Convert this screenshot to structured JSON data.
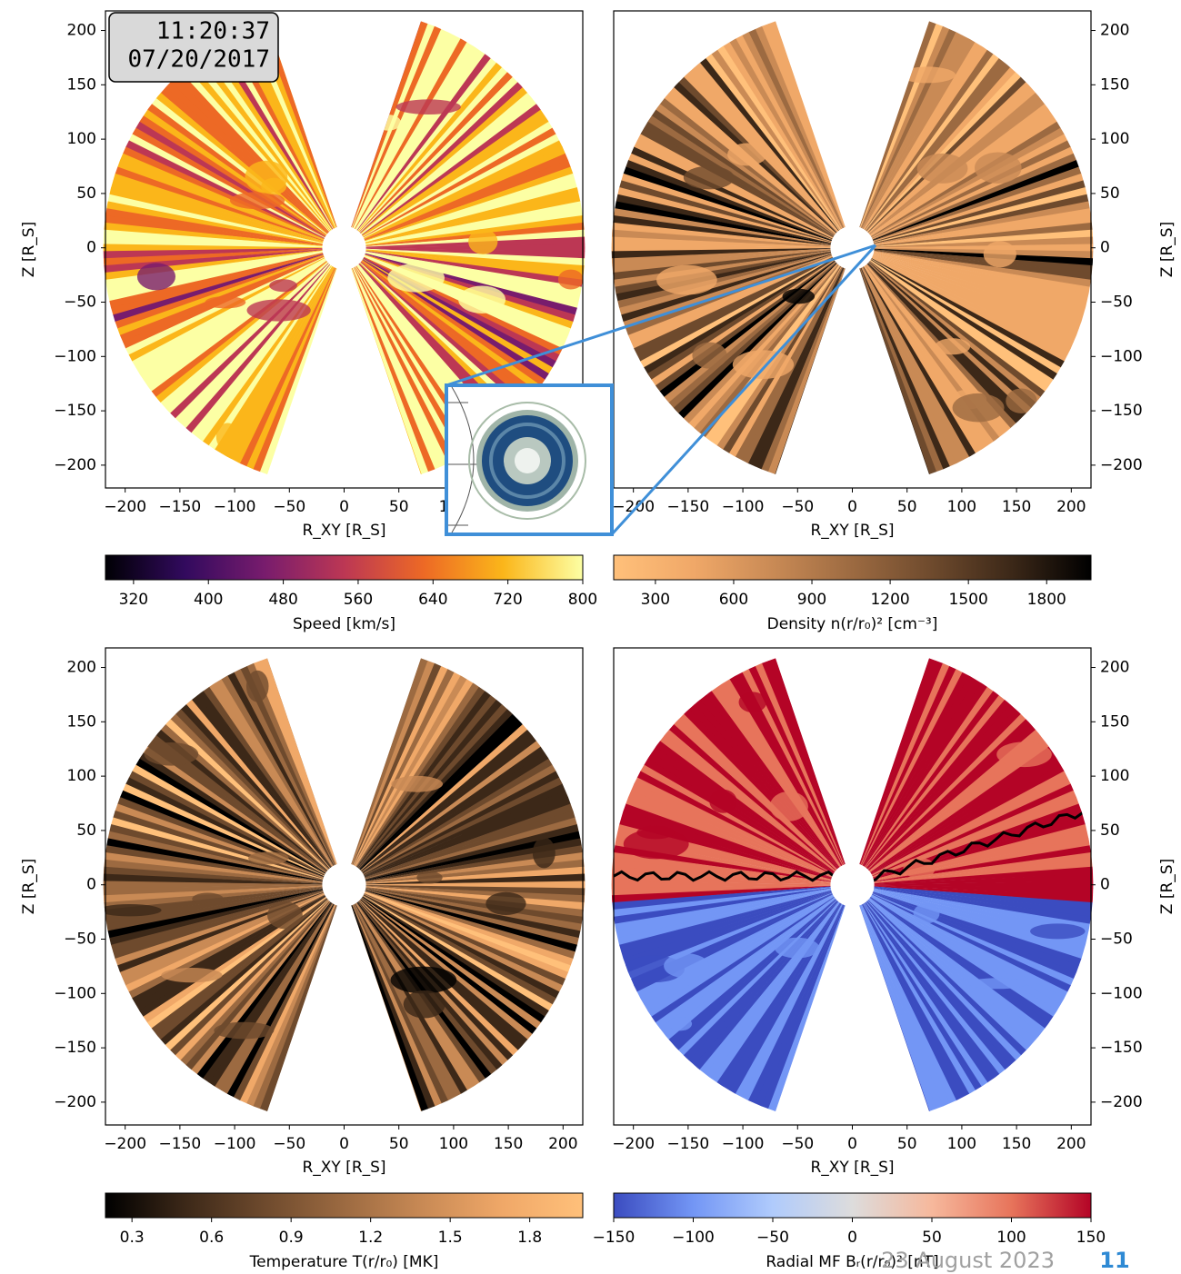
{
  "timestamp": {
    "time": "11:20:37",
    "date": "07/20/2017"
  },
  "chart_data": [
    {
      "type": "field",
      "xlabel": "R_XY [R_S]",
      "ylabel": "Z [R_S]",
      "yaxis_side": "left",
      "xlim": [
        -218,
        218
      ],
      "ylim": [
        -221,
        218
      ],
      "xticks": [
        {
          "value": -200,
          "label": "−200"
        },
        {
          "value": -150,
          "label": "−150"
        },
        {
          "value": -100,
          "label": "−100"
        },
        {
          "value": -50,
          "label": "−50"
        },
        0,
        50,
        100,
        150,
        200
      ],
      "yticks": [
        {
          "value": -200,
          "label": "−200"
        },
        {
          "value": -150,
          "label": "−150"
        },
        {
          "value": -100,
          "label": "−100"
        },
        {
          "value": -50,
          "label": "−50"
        },
        0,
        50,
        100,
        150,
        200
      ],
      "colorbar": {
        "label": "Speed [km/s]",
        "lim": [
          290,
          800
        ],
        "ticks": [
          320,
          400,
          480,
          560,
          640,
          720,
          800
        ],
        "colormap": [
          "#000004",
          "#320a5e",
          "#781c6d",
          "#bc3754",
          "#ed6925",
          "#fbb61a",
          "#fcffa4"
        ]
      }
    },
    {
      "type": "field",
      "xlabel": "R_XY [R_S]",
      "ylabel": "Z [R_S]",
      "yaxis_side": "right",
      "xlim": [
        -218,
        218
      ],
      "ylim": [
        -221,
        218
      ],
      "xticks": [
        {
          "value": -200,
          "label": "−200"
        },
        {
          "value": -150,
          "label": "−150"
        },
        {
          "value": -100,
          "label": "−100"
        },
        {
          "value": -50,
          "label": "−50"
        },
        0,
        50,
        100,
        150,
        200
      ],
      "yticks": [
        {
          "value": -200,
          "label": "−200"
        },
        {
          "value": -150,
          "label": "−150"
        },
        {
          "value": -100,
          "label": "−100"
        },
        {
          "value": -50,
          "label": "−50"
        },
        0,
        50,
        100,
        150,
        200
      ],
      "colorbar": {
        "label": "Density n(r/r₀)² [cm⁻³]",
        "lim": [
          140,
          1970
        ],
        "ticks": [
          300,
          600,
          900,
          1200,
          1500,
          1800
        ],
        "colormap": [
          "#ffc07a",
          "#f0a868",
          "#c98a55",
          "#9c6a41",
          "#6e4a2d",
          "#3c2818",
          "#000000"
        ]
      }
    },
    {
      "type": "field",
      "xlabel": "R_XY [R_S]",
      "ylabel": "Z [R_S]",
      "yaxis_side": "left",
      "xlim": [
        -218,
        218
      ],
      "ylim": [
        -221,
        218
      ],
      "xticks": [
        {
          "value": -200,
          "label": "−200"
        },
        {
          "value": -150,
          "label": "−150"
        },
        {
          "value": -100,
          "label": "−100"
        },
        {
          "value": -50,
          "label": "−50"
        },
        0,
        50,
        100,
        150,
        200
      ],
      "yticks": [
        {
          "value": -200,
          "label": "−200"
        },
        {
          "value": -150,
          "label": "−150"
        },
        {
          "value": -100,
          "label": "−100"
        },
        {
          "value": -50,
          "label": "−50"
        },
        0,
        50,
        100,
        150,
        200
      ],
      "colorbar": {
        "label": "Temperature T(r/r₀) [MK]",
        "lim": [
          0.2,
          2.0
        ],
        "ticks": [
          0.3,
          0.6,
          0.9,
          1.2,
          1.5,
          1.8
        ],
        "colormap": [
          "#000000",
          "#3c2818",
          "#6e4a2d",
          "#9c6a41",
          "#c98a55",
          "#f0a868",
          "#ffc07a"
        ]
      }
    },
    {
      "type": "field",
      "xlabel": "R_XY [R_S]",
      "ylabel": "Z [R_S]",
      "yaxis_side": "right",
      "xlim": [
        -218,
        218
      ],
      "ylim": [
        -221,
        218
      ],
      "xticks": [
        {
          "value": -200,
          "label": "−200"
        },
        {
          "value": -150,
          "label": "−150"
        },
        {
          "value": -100,
          "label": "−100"
        },
        {
          "value": -50,
          "label": "−50"
        },
        0,
        50,
        100,
        150,
        200
      ],
      "yticks": [
        {
          "value": -200,
          "label": "−200"
        },
        {
          "value": -150,
          "label": "−150"
        },
        {
          "value": -100,
          "label": "−100"
        },
        {
          "value": -50,
          "label": "−50"
        },
        0,
        50,
        100,
        150,
        200
      ],
      "colorbar": {
        "label": "Radial MF Bᵣ(r/r₀)² [nT]",
        "lim": [
          -150,
          150
        ],
        "ticks": [
          {
            "value": -150,
            "label": "−150"
          },
          {
            "value": -100,
            "label": "−100"
          },
          {
            "value": -50,
            "label": "−50"
          },
          0,
          50,
          100,
          150
        ],
        "colormap": [
          "#3b4cc0",
          "#7396f5",
          "#b0cbfc",
          "#dddcdc",
          "#f6b89c",
          "#e7745b",
          "#b40426"
        ]
      }
    }
  ],
  "footer": {
    "date": "23 August 2023",
    "page": "11"
  }
}
